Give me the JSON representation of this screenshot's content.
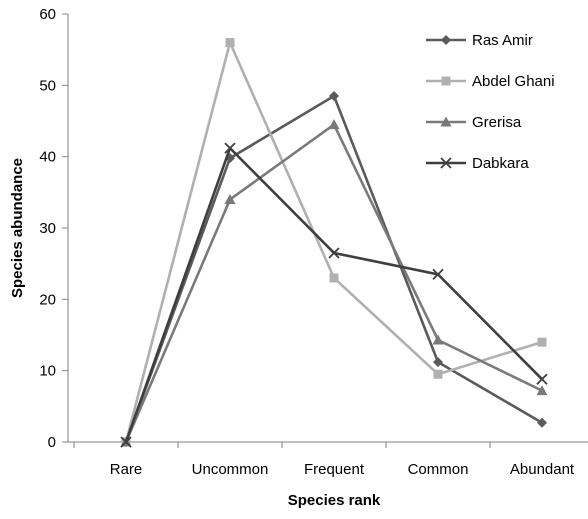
{
  "chart_data": {
    "type": "line",
    "title": "",
    "xlabel": "Species rank",
    "ylabel": "Species abundance",
    "categories": [
      "Rare",
      "Uncommon",
      "Frequent",
      "Common",
      "Abundant"
    ],
    "ylim": [
      0,
      60
    ],
    "yticks": [
      0,
      10,
      20,
      30,
      40,
      50,
      60
    ],
    "grid": false,
    "legend_position": "top-right",
    "series": [
      {
        "name": "Ras Amir",
        "values": [
          0,
          39.8,
          48.5,
          11.2,
          2.7
        ],
        "color": "#5a5a5a",
        "marker": "diamond"
      },
      {
        "name": "Abdel Ghani",
        "values": [
          0,
          56,
          23,
          9.5,
          14
        ],
        "color": "#b0b0b0",
        "marker": "square"
      },
      {
        "name": "Grerisa",
        "values": [
          0,
          34,
          44.5,
          14.3,
          7.2
        ],
        "color": "#7a7a7a",
        "marker": "triangle"
      },
      {
        "name": "Dabkara",
        "values": [
          0,
          41.2,
          26.5,
          23.5,
          8.8
        ],
        "color": "#3e3e3e",
        "marker": "x"
      }
    ]
  }
}
